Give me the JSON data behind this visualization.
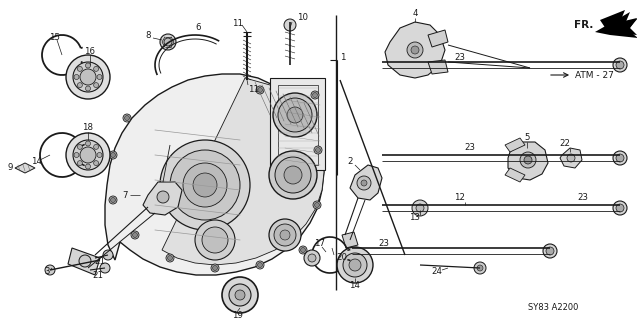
{
  "bg_color": "#ffffff",
  "fig_width": 6.37,
  "fig_height": 3.2,
  "dpi": 100,
  "diagram_code": "SY83 A2200",
  "line_color": "#1a1a1a",
  "gray_fill": "#d8d8d8",
  "light_fill": "#efefef",
  "atm_label": "ATM - 27",
  "fr_label": "FR."
}
